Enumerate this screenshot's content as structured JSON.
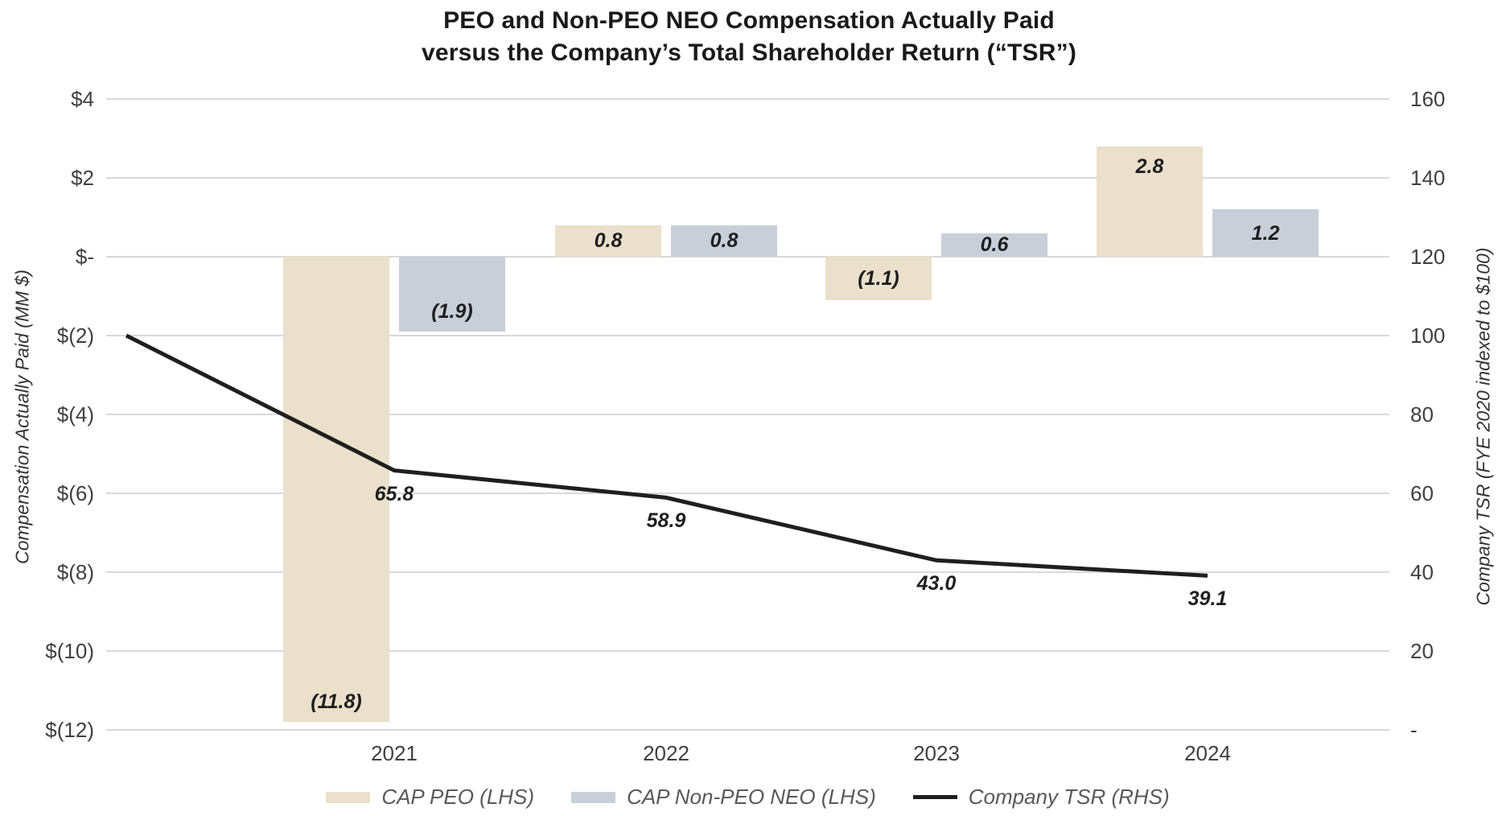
{
  "title": {
    "line1": "PEO and Non-PEO NEO Compensation Actually Paid",
    "line2": "versus the Company’s Total Shareholder Return (“TSR”)"
  },
  "chart_data": {
    "type": "combo-bar-line",
    "categories": [
      "2021",
      "2022",
      "2023",
      "2024"
    ],
    "series": [
      {
        "name": "CAP PEO (LHS)",
        "type": "bar",
        "axis": "left",
        "color": "#EAE0CB",
        "values": [
          -11.8,
          0.8,
          -1.1,
          2.8
        ],
        "labels": [
          "(11.8)",
          "0.8",
          "(1.1)",
          "2.8"
        ]
      },
      {
        "name": "CAP Non-PEO NEO (LHS)",
        "type": "bar",
        "axis": "left",
        "color": "#C8CFD9",
        "values": [
          -1.9,
          0.8,
          0.6,
          1.2
        ],
        "labels": [
          "(1.9)",
          "0.8",
          "0.6",
          "1.2"
        ]
      },
      {
        "name": "Company TSR (RHS)",
        "type": "line",
        "axis": "right",
        "color": "#1f1f1f",
        "x": [
          "2020",
          "2021",
          "2022",
          "2023",
          "2024"
        ],
        "values": [
          100,
          65.8,
          58.9,
          43.0,
          39.1
        ],
        "labels": [
          null,
          "65.8",
          "58.9",
          "43.0",
          "39.1"
        ]
      }
    ],
    "left_axis": {
      "title": "Compensation Actually Paid (MM $)",
      "ticks": [
        "$4",
        "$2",
        "$-",
        "$(2)",
        "$(4)",
        "$(6)",
        "$(8)",
        "$(10)",
        "$(12)"
      ],
      "values": [
        4,
        2,
        0,
        -2,
        -4,
        -6,
        -8,
        -10,
        -12
      ],
      "range": [
        -12,
        4
      ]
    },
    "right_axis": {
      "title": "Company TSR (FYE 2020 indexed to $100)",
      "ticks": [
        "160",
        "140",
        "120",
        "100",
        "80",
        "60",
        "40",
        "20",
        "-"
      ],
      "values": [
        160,
        140,
        120,
        100,
        80,
        60,
        40,
        20,
        0
      ],
      "range": [
        0,
        160
      ]
    },
    "grid": "on",
    "grid_color": "#D9D9D9",
    "legend_position": "bottom",
    "colors": {
      "tick_text": "#404040",
      "data_label_text": "#1f1f1f",
      "legend_text": "#595959",
      "title_text": "#1a1a1a"
    }
  }
}
